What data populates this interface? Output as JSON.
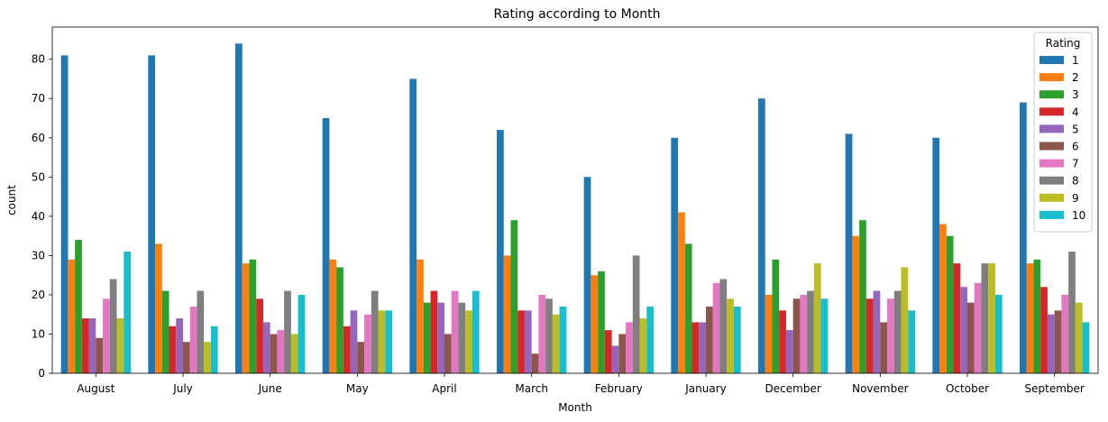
{
  "chart_data": {
    "type": "bar",
    "title": "Rating according to Month",
    "xlabel": "Month",
    "ylabel": "count",
    "ylim": [
      0,
      88.2
    ],
    "yticks": [
      0,
      10,
      20,
      30,
      40,
      50,
      60,
      70,
      80
    ],
    "categories": [
      "August",
      "July",
      "June",
      "May",
      "April",
      "March",
      "February",
      "January",
      "December",
      "November",
      "October",
      "September"
    ],
    "legend": {
      "title": "Rating",
      "position": "top-right"
    },
    "series": [
      {
        "name": "1",
        "color": "#1f77b4",
        "values": [
          81,
          81,
          84,
          65,
          75,
          62,
          50,
          60,
          70,
          61,
          60,
          69
        ]
      },
      {
        "name": "2",
        "color": "#ff7f0e",
        "values": [
          29,
          33,
          28,
          29,
          29,
          30,
          25,
          41,
          20,
          35,
          38,
          28
        ]
      },
      {
        "name": "3",
        "color": "#2ca02c",
        "values": [
          34,
          21,
          29,
          27,
          18,
          39,
          26,
          33,
          29,
          39,
          35,
          29
        ]
      },
      {
        "name": "4",
        "color": "#d62728",
        "values": [
          14,
          12,
          19,
          12,
          21,
          16,
          11,
          13,
          16,
          19,
          28,
          22
        ]
      },
      {
        "name": "5",
        "color": "#9467bd",
        "values": [
          14,
          14,
          13,
          16,
          18,
          16,
          7,
          13,
          11,
          21,
          22,
          15
        ]
      },
      {
        "name": "6",
        "color": "#8c564b",
        "values": [
          9,
          8,
          10,
          8,
          10,
          5,
          10,
          17,
          19,
          13,
          18,
          16
        ]
      },
      {
        "name": "7",
        "color": "#e377c2",
        "values": [
          19,
          17,
          11,
          15,
          21,
          20,
          13,
          23,
          20,
          19,
          23,
          20
        ]
      },
      {
        "name": "8",
        "color": "#7f7f7f",
        "values": [
          24,
          21,
          21,
          21,
          18,
          19,
          30,
          24,
          21,
          21,
          28,
          31
        ]
      },
      {
        "name": "9",
        "color": "#bcbd22",
        "values": [
          14,
          8,
          10,
          16,
          16,
          15,
          14,
          19,
          28,
          27,
          28,
          18
        ]
      },
      {
        "name": "10",
        "color": "#17becf",
        "values": [
          31,
          12,
          20,
          16,
          21,
          17,
          17,
          17,
          19,
          16,
          20,
          13
        ]
      }
    ]
  }
}
